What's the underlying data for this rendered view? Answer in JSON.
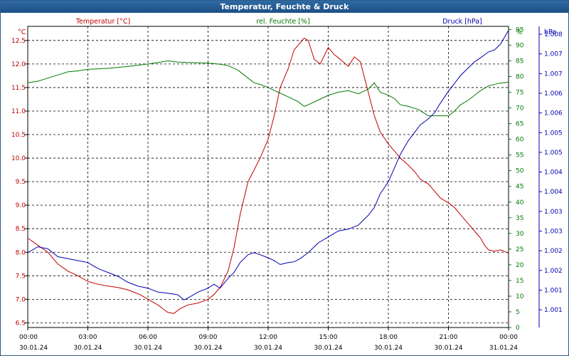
{
  "window": {
    "title": "Temperatur, Feuchte & Druck"
  },
  "chart_data": {
    "type": "line",
    "title": "Temperatur, Feuchte & Druck",
    "grid": true,
    "legend": {
      "temperature": "Temperatur [°C]",
      "humidity": "rel. Feuchte [%]",
      "pressure": "Druck [hPa]"
    },
    "colors": {
      "temperature": "#c00000",
      "humidity": "#007a00",
      "pressure": "#0000b0",
      "grid": "#000000"
    },
    "axes": {
      "left": {
        "unit": "°C",
        "range": [
          6.4,
          12.8
        ],
        "ticks": [
          "6.5",
          "7.0",
          "7.5",
          "8.0",
          "8.5",
          "9.0",
          "9.5",
          "10.0",
          "10.5",
          "11.0",
          "11.5",
          "12.0",
          "12.5"
        ]
      },
      "right_humidity": {
        "unit": "%",
        "range": [
          0,
          96
        ],
        "ticks": [
          "0",
          "5",
          "10",
          "15",
          "20",
          "25",
          "30",
          "35",
          "40",
          "45",
          "50",
          "55",
          "60",
          "65",
          "70",
          "75",
          "80",
          "85",
          "90",
          "95"
        ]
      },
      "right_pressure": {
        "unit": "hPa",
        "range": [
          1000.55,
          1008.2
        ],
        "ticks": [
          "1.001",
          "1.001",
          "1.002",
          "1.002",
          "1.003",
          "1.003",
          "1.004",
          "1.004",
          "1.005",
          "1.005",
          "1.006",
          "1.006",
          "1.007",
          "1.007",
          "1.008"
        ]
      },
      "x": {
        "range_hours": [
          0,
          24
        ],
        "tick_times": [
          "00:00",
          "03:00",
          "06:00",
          "09:00",
          "12:00",
          "15:00",
          "18:00",
          "21:00",
          "00:00"
        ],
        "tick_dates": [
          "30.01.24",
          "30.01.24",
          "30.01.24",
          "30.01.24",
          "30.01.24",
          "30.01.24",
          "30.01.24",
          "30.01.24",
          "31.01.24"
        ]
      }
    },
    "series": [
      {
        "name": "Temperatur [°C]",
        "key": "temperature",
        "points": [
          [
            0,
            8.3
          ],
          [
            0.5,
            8.15
          ],
          [
            1,
            8.0
          ],
          [
            1.5,
            7.75
          ],
          [
            2,
            7.6
          ],
          [
            2.5,
            7.5
          ],
          [
            3,
            7.38
          ],
          [
            3.5,
            7.32
          ],
          [
            4,
            7.28
          ],
          [
            4.5,
            7.25
          ],
          [
            5,
            7.2
          ],
          [
            5.3,
            7.15
          ],
          [
            5.6,
            7.1
          ],
          [
            6,
            7.0
          ],
          [
            6.5,
            6.88
          ],
          [
            6.8,
            6.78
          ],
          [
            7,
            6.72
          ],
          [
            7.3,
            6.7
          ],
          [
            7.6,
            6.8
          ],
          [
            8,
            6.88
          ],
          [
            8.5,
            6.92
          ],
          [
            9,
            7.0
          ],
          [
            9.3,
            7.1
          ],
          [
            9.6,
            7.25
          ],
          [
            10,
            7.6
          ],
          [
            10.3,
            8.1
          ],
          [
            10.6,
            8.8
          ],
          [
            11,
            9.5
          ],
          [
            11.3,
            9.75
          ],
          [
            11.6,
            10.0
          ],
          [
            12,
            10.4
          ],
          [
            12.3,
            10.9
          ],
          [
            12.6,
            11.5
          ],
          [
            13,
            11.9
          ],
          [
            13.3,
            12.3
          ],
          [
            13.6,
            12.45
          ],
          [
            13.8,
            12.55
          ],
          [
            14,
            12.5
          ],
          [
            14.3,
            12.1
          ],
          [
            14.6,
            12.0
          ],
          [
            15,
            12.35
          ],
          [
            15.3,
            12.2
          ],
          [
            15.6,
            12.1
          ],
          [
            16,
            11.95
          ],
          [
            16.3,
            12.15
          ],
          [
            16.6,
            12.05
          ],
          [
            17,
            11.4
          ],
          [
            17.3,
            10.9
          ],
          [
            17.6,
            10.55
          ],
          [
            18,
            10.3
          ],
          [
            18.3,
            10.15
          ],
          [
            18.6,
            10.0
          ],
          [
            19,
            9.85
          ],
          [
            19.3,
            9.72
          ],
          [
            19.6,
            9.55
          ],
          [
            20,
            9.45
          ],
          [
            20.3,
            9.3
          ],
          [
            20.6,
            9.15
          ],
          [
            21,
            9.05
          ],
          [
            21.3,
            8.95
          ],
          [
            21.6,
            8.8
          ],
          [
            22,
            8.6
          ],
          [
            22.3,
            8.45
          ],
          [
            22.6,
            8.3
          ],
          [
            22.8,
            8.15
          ],
          [
            23,
            8.05
          ],
          [
            23.3,
            8.02
          ],
          [
            23.6,
            8.05
          ],
          [
            24,
            7.98
          ]
        ]
      },
      {
        "name": "rel. Feuchte [%]",
        "key": "humidity",
        "points": [
          [
            0,
            78
          ],
          [
            0.5,
            78.5
          ],
          [
            1,
            79.5
          ],
          [
            1.5,
            80.5
          ],
          [
            2,
            81.5
          ],
          [
            2.5,
            81.8
          ],
          [
            3,
            82.3
          ],
          [
            4,
            82.6
          ],
          [
            5,
            83.2
          ],
          [
            6,
            84
          ],
          [
            6.5,
            84.5
          ],
          [
            7,
            85
          ],
          [
            7.5,
            84.6
          ],
          [
            8,
            84.5
          ],
          [
            9,
            84.3
          ],
          [
            9.5,
            84
          ],
          [
            10,
            83.5
          ],
          [
            10.5,
            82
          ],
          [
            11,
            79.5
          ],
          [
            11.3,
            78
          ],
          [
            11.6,
            77.5
          ],
          [
            12,
            76.5
          ],
          [
            12.5,
            75
          ],
          [
            13,
            73.5
          ],
          [
            13.5,
            72
          ],
          [
            13.8,
            70.5
          ],
          [
            14,
            71
          ],
          [
            14.5,
            72.5
          ],
          [
            15,
            74
          ],
          [
            15.5,
            75
          ],
          [
            16,
            75.5
          ],
          [
            16.5,
            74.5
          ],
          [
            17,
            76
          ],
          [
            17.3,
            78
          ],
          [
            17.6,
            75
          ],
          [
            18,
            74
          ],
          [
            18.3,
            73
          ],
          [
            18.6,
            71
          ],
          [
            19,
            70.5
          ],
          [
            19.5,
            69.5
          ],
          [
            20,
            67.5
          ],
          [
            20.5,
            67.5
          ],
          [
            21,
            67.5
          ],
          [
            21.3,
            69
          ],
          [
            21.6,
            71
          ],
          [
            22,
            72.5
          ],
          [
            22.3,
            74
          ],
          [
            22.6,
            75.5
          ],
          [
            23,
            77
          ],
          [
            23.5,
            77.8
          ],
          [
            24,
            78.2
          ]
        ]
      },
      {
        "name": "Druck [hPa]",
        "key": "pressure",
        "points": [
          [
            0,
            1002.45
          ],
          [
            0.5,
            1002.6
          ],
          [
            1,
            1002.55
          ],
          [
            1.5,
            1002.35
          ],
          [
            2,
            1002.3
          ],
          [
            2.5,
            1002.25
          ],
          [
            3,
            1002.2
          ],
          [
            3.5,
            1002.05
          ],
          [
            4,
            1001.95
          ],
          [
            4.5,
            1001.85
          ],
          [
            5,
            1001.7
          ],
          [
            5.5,
            1001.6
          ],
          [
            6,
            1001.55
          ],
          [
            6.5,
            1001.45
          ],
          [
            7,
            1001.42
          ],
          [
            7.5,
            1001.38
          ],
          [
            7.8,
            1001.25
          ],
          [
            8,
            1001.3
          ],
          [
            8.5,
            1001.45
          ],
          [
            9,
            1001.55
          ],
          [
            9.3,
            1001.65
          ],
          [
            9.6,
            1001.55
          ],
          [
            10,
            1001.8
          ],
          [
            10.3,
            1001.95
          ],
          [
            10.6,
            1002.2
          ],
          [
            11,
            1002.4
          ],
          [
            11.3,
            1002.45
          ],
          [
            11.6,
            1002.4
          ],
          [
            12,
            1002.32
          ],
          [
            12.3,
            1002.25
          ],
          [
            12.6,
            1002.15
          ],
          [
            13,
            1002.2
          ],
          [
            13.3,
            1002.22
          ],
          [
            13.6,
            1002.3
          ],
          [
            14,
            1002.45
          ],
          [
            14.5,
            1002.7
          ],
          [
            15,
            1002.85
          ],
          [
            15.5,
            1003.0
          ],
          [
            16,
            1003.05
          ],
          [
            16.5,
            1003.15
          ],
          [
            17,
            1003.4
          ],
          [
            17.3,
            1003.6
          ],
          [
            17.6,
            1003.95
          ],
          [
            18,
            1004.25
          ],
          [
            18.3,
            1004.6
          ],
          [
            18.6,
            1004.95
          ],
          [
            19,
            1005.3
          ],
          [
            19.3,
            1005.5
          ],
          [
            19.6,
            1005.7
          ],
          [
            20,
            1005.85
          ],
          [
            20.3,
            1006.0
          ],
          [
            20.6,
            1006.25
          ],
          [
            21,
            1006.55
          ],
          [
            21.3,
            1006.75
          ],
          [
            21.6,
            1006.95
          ],
          [
            22,
            1007.15
          ],
          [
            22.3,
            1007.3
          ],
          [
            22.6,
            1007.4
          ],
          [
            23,
            1007.55
          ],
          [
            23.3,
            1007.6
          ],
          [
            23.6,
            1007.75
          ],
          [
            24,
            1008.1
          ]
        ]
      }
    ]
  }
}
